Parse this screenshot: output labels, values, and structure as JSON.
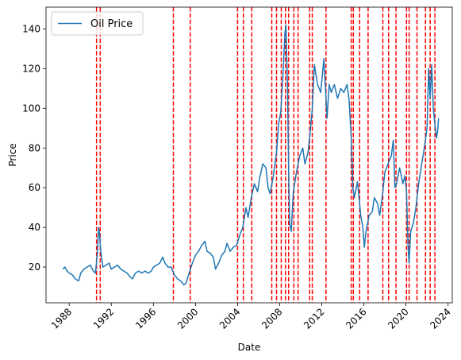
{
  "chart_data": {
    "type": "line",
    "xlabel": "Date",
    "ylabel": "Price",
    "xlim": [
      1985.8,
      2024.4
    ],
    "ylim": [
      2,
      151
    ],
    "x_ticks": [
      1988,
      1992,
      1996,
      2000,
      2004,
      2008,
      2012,
      2016,
      2020,
      2024
    ],
    "x_tick_labels": [
      "1988",
      "1992",
      "1996",
      "2000",
      "2004",
      "2008",
      "2012",
      "2016",
      "2020",
      "2024"
    ],
    "y_ticks": [
      20,
      40,
      60,
      80,
      100,
      120,
      140
    ],
    "y_tick_labels": [
      "20",
      "40",
      "60",
      "80",
      "100",
      "120",
      "140"
    ],
    "grid": false,
    "legend": {
      "placement": "top-left",
      "entries": [
        "Oil Price"
      ]
    },
    "series": [
      {
        "name": "Oil Price",
        "color": "#1f77b4",
        "points": [
          [
            1987.4,
            19
          ],
          [
            1987.6,
            20
          ],
          [
            1987.8,
            18
          ],
          [
            1988.0,
            17
          ],
          [
            1988.3,
            16
          ],
          [
            1988.6,
            14
          ],
          [
            1988.9,
            13
          ],
          [
            1989.1,
            17
          ],
          [
            1989.4,
            19
          ],
          [
            1989.7,
            20
          ],
          [
            1990.0,
            21
          ],
          [
            1990.3,
            18
          ],
          [
            1990.5,
            17
          ],
          [
            1990.7,
            28
          ],
          [
            1990.8,
            40
          ],
          [
            1990.9,
            36
          ],
          [
            1991.0,
            28
          ],
          [
            1991.2,
            20
          ],
          [
            1991.5,
            21
          ],
          [
            1991.8,
            22
          ],
          [
            1992.0,
            19
          ],
          [
            1992.3,
            20
          ],
          [
            1992.6,
            21
          ],
          [
            1992.9,
            19
          ],
          [
            1993.2,
            18
          ],
          [
            1993.5,
            17
          ],
          [
            1993.8,
            15
          ],
          [
            1994.0,
            14
          ],
          [
            1994.3,
            17
          ],
          [
            1994.6,
            18
          ],
          [
            1994.9,
            17
          ],
          [
            1995.2,
            18
          ],
          [
            1995.5,
            17
          ],
          [
            1995.8,
            18
          ],
          [
            1996.0,
            20
          ],
          [
            1996.3,
            21
          ],
          [
            1996.6,
            22
          ],
          [
            1996.9,
            25
          ],
          [
            1997.1,
            22
          ],
          [
            1997.4,
            20
          ],
          [
            1997.7,
            20
          ],
          [
            1998.0,
            16
          ],
          [
            1998.3,
            14
          ],
          [
            1998.6,
            13
          ],
          [
            1998.9,
            11
          ],
          [
            1999.1,
            12
          ],
          [
            1999.4,
            17
          ],
          [
            1999.7,
            22
          ],
          [
            2000.0,
            26
          ],
          [
            2000.3,
            28
          ],
          [
            2000.6,
            31
          ],
          [
            2000.9,
            33
          ],
          [
            2001.1,
            28
          ],
          [
            2001.4,
            27
          ],
          [
            2001.7,
            25
          ],
          [
            2001.9,
            19
          ],
          [
            2002.2,
            22
          ],
          [
            2002.5,
            26
          ],
          [
            2002.8,
            28
          ],
          [
            2003.0,
            32
          ],
          [
            2003.3,
            28
          ],
          [
            2003.6,
            30
          ],
          [
            2003.9,
            31
          ],
          [
            2004.2,
            36
          ],
          [
            2004.5,
            40
          ],
          [
            2004.8,
            50
          ],
          [
            2005.0,
            45
          ],
          [
            2005.3,
            55
          ],
          [
            2005.6,
            62
          ],
          [
            2005.9,
            58
          ],
          [
            2006.1,
            65
          ],
          [
            2006.4,
            72
          ],
          [
            2006.7,
            70
          ],
          [
            2006.9,
            60
          ],
          [
            2007.1,
            57
          ],
          [
            2007.4,
            66
          ],
          [
            2007.7,
            78
          ],
          [
            2007.9,
            92
          ],
          [
            2008.1,
            98
          ],
          [
            2008.3,
            115
          ],
          [
            2008.5,
            138
          ],
          [
            2008.6,
            142
          ],
          [
            2008.75,
            110
          ],
          [
            2008.85,
            70
          ],
          [
            2008.95,
            42
          ],
          [
            2009.1,
            38
          ],
          [
            2009.3,
            58
          ],
          [
            2009.6,
            68
          ],
          [
            2009.9,
            76
          ],
          [
            2010.2,
            80
          ],
          [
            2010.4,
            72
          ],
          [
            2010.7,
            78
          ],
          [
            2010.9,
            88
          ],
          [
            2011.1,
            100
          ],
          [
            2011.3,
            122
          ],
          [
            2011.6,
            112
          ],
          [
            2011.9,
            108
          ],
          [
            2012.2,
            125
          ],
          [
            2012.5,
            95
          ],
          [
            2012.7,
            112
          ],
          [
            2012.9,
            108
          ],
          [
            2013.2,
            112
          ],
          [
            2013.5,
            105
          ],
          [
            2013.8,
            110
          ],
          [
            2014.1,
            108
          ],
          [
            2014.4,
            112
          ],
          [
            2014.6,
            104
          ],
          [
            2014.8,
            85
          ],
          [
            2014.95,
            60
          ],
          [
            2015.1,
            55
          ],
          [
            2015.4,
            63
          ],
          [
            2015.7,
            46
          ],
          [
            2015.9,
            40
          ],
          [
            2016.05,
            30
          ],
          [
            2016.2,
            38
          ],
          [
            2016.5,
            46
          ],
          [
            2016.8,
            48
          ],
          [
            2017.0,
            55
          ],
          [
            2017.3,
            52
          ],
          [
            2017.5,
            46
          ],
          [
            2017.8,
            58
          ],
          [
            2018.0,
            68
          ],
          [
            2018.3,
            72
          ],
          [
            2018.6,
            76
          ],
          [
            2018.8,
            84
          ],
          [
            2018.95,
            60
          ],
          [
            2019.1,
            62
          ],
          [
            2019.4,
            70
          ],
          [
            2019.7,
            62
          ],
          [
            2019.9,
            66
          ],
          [
            2020.05,
            58
          ],
          [
            2020.2,
            30
          ],
          [
            2020.3,
            22
          ],
          [
            2020.45,
            38
          ],
          [
            2020.7,
            42
          ],
          [
            2020.95,
            50
          ],
          [
            2021.2,
            62
          ],
          [
            2021.5,
            72
          ],
          [
            2021.8,
            82
          ],
          [
            2022.0,
            90
          ],
          [
            2022.15,
            120
          ],
          [
            2022.3,
            105
          ],
          [
            2022.45,
            122
          ],
          [
            2022.6,
            100
          ],
          [
            2022.75,
            92
          ],
          [
            2022.9,
            85
          ],
          [
            2023.0,
            88
          ],
          [
            2023.1,
            95
          ]
        ]
      }
    ],
    "vlines": {
      "color": "#ff0000",
      "style": "dashed",
      "x": [
        1990.6,
        1990.95,
        1997.9,
        1999.5,
        2004.0,
        2004.55,
        2005.35,
        2007.25,
        2007.7,
        2008.15,
        2008.55,
        2008.85,
        2009.35,
        2009.75,
        2010.85,
        2011.1,
        2012.4,
        2014.8,
        2015.0,
        2015.6,
        2016.4,
        2017.8,
        2018.35,
        2019.05,
        2020.05,
        2020.3,
        2021.05,
        2021.85,
        2022.3,
        2022.75
      ]
    }
  }
}
